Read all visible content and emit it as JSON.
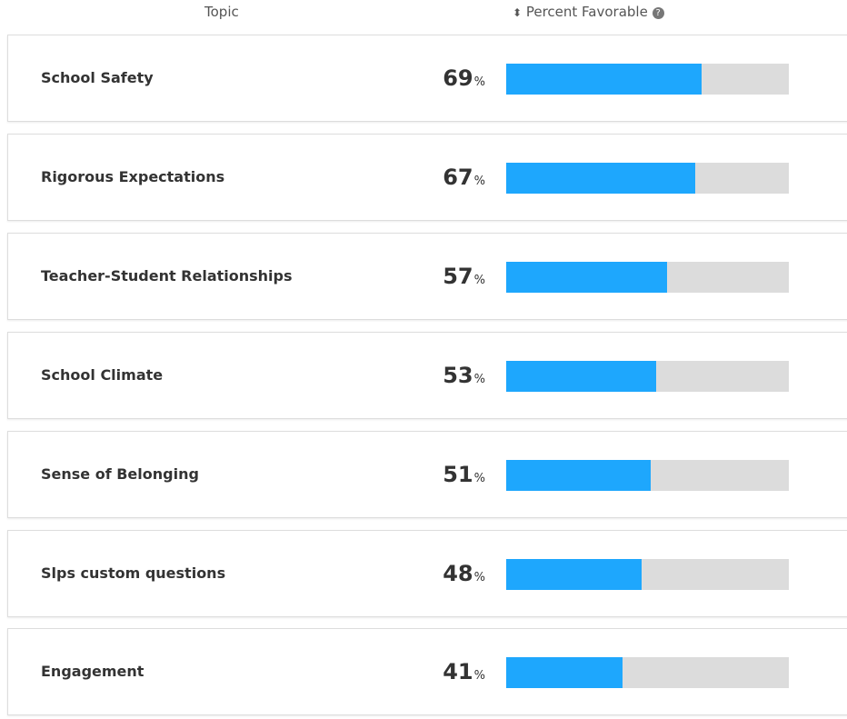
{
  "header": {
    "topic": "Topic",
    "percent": "Percent Favorable"
  },
  "unit": "%",
  "xlim": [
    0,
    100
  ],
  "bar_color": "#1ea7fd",
  "track_color": "#dcdcdc",
  "rows": [
    {
      "topic": "School Safety",
      "value": 69
    },
    {
      "topic": "Rigorous Expectations",
      "value": 67
    },
    {
      "topic": "Teacher-Student Relationships",
      "value": 57
    },
    {
      "topic": "School Climate",
      "value": 53
    },
    {
      "topic": "Sense of Belonging",
      "value": 51
    },
    {
      "topic": "Slps custom questions",
      "value": 48
    },
    {
      "topic": "Engagement",
      "value": 41
    }
  ]
}
